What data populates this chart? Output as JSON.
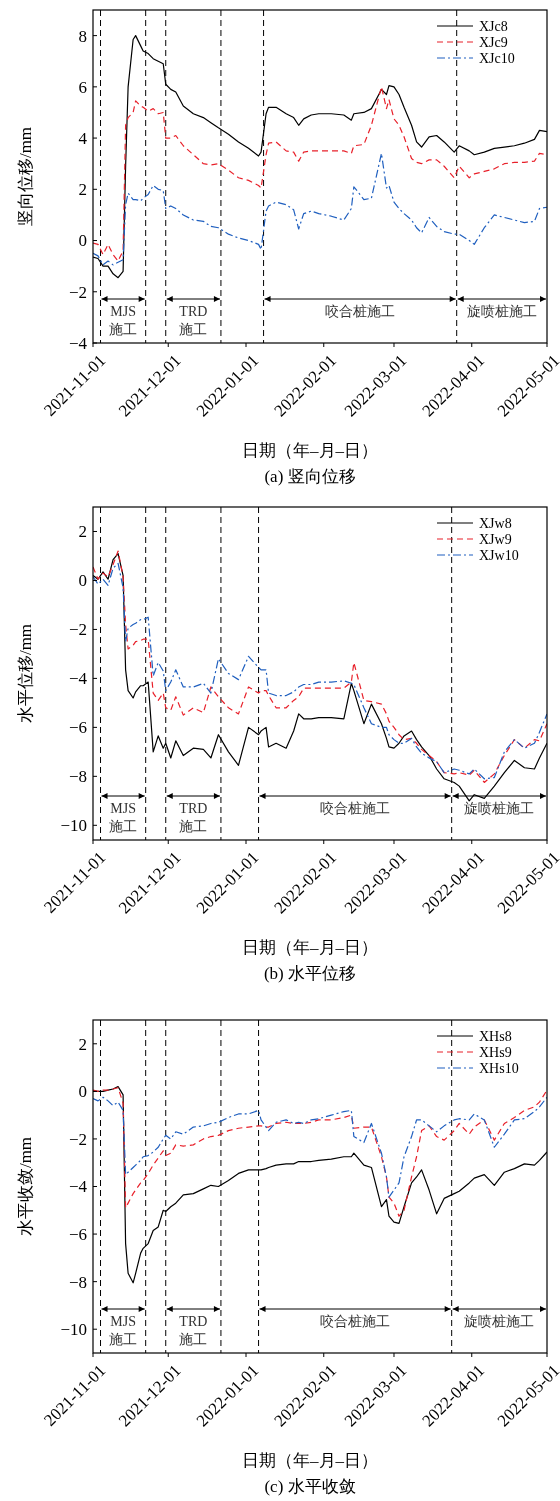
{
  "chart_data": [
    {
      "type": "line",
      "title": "(a) 竖向位移",
      "xlabel": "日期（年–月–日）",
      "ylabel": "竖向位移/mm",
      "xlim": [
        "2021-11-01",
        "2022-05-01"
      ],
      "xticks": [
        "2021-11-01",
        "2021-12-01",
        "2022-01-01",
        "2022-02-01",
        "2022-03-01",
        "2022-04-01",
        "2022-05-01"
      ],
      "ylim": [
        -4,
        9
      ],
      "yticks": [
        -4,
        -2,
        0,
        2,
        4,
        6,
        8
      ],
      "grid": false,
      "legend": "top right",
      "x": [
        "2021-11-01",
        "2021-11-03",
        "2021-11-05",
        "2021-11-07",
        "2021-11-09",
        "2021-11-11",
        "2021-11-13",
        "2021-11-14",
        "2021-11-15",
        "2021-11-17",
        "2021-11-18",
        "2021-11-20",
        "2021-11-21",
        "2021-11-23",
        "2021-11-25",
        "2021-11-27",
        "2021-11-29",
        "2021-11-30",
        "2021-12-02",
        "2021-12-04",
        "2021-12-07",
        "2021-12-11",
        "2021-12-15",
        "2021-12-18",
        "2021-12-21",
        "2021-12-25",
        "2021-12-29",
        "2022-01-02",
        "2022-01-06",
        "2022-01-07",
        "2022-01-09",
        "2022-01-10",
        "2022-01-13",
        "2022-01-17",
        "2022-01-20",
        "2022-01-22",
        "2022-01-24",
        "2022-01-27",
        "2022-01-30",
        "2022-02-04",
        "2022-02-09",
        "2022-02-12",
        "2022-02-13",
        "2022-02-17",
        "2022-02-20",
        "2022-02-24",
        "2022-02-26",
        "2022-02-27",
        "2022-03-01",
        "2022-03-03",
        "2022-03-05",
        "2022-03-08",
        "2022-03-10",
        "2022-03-12",
        "2022-03-15",
        "2022-03-18",
        "2022-03-21",
        "2022-03-25",
        "2022-03-27",
        "2022-03-31",
        "2022-04-02",
        "2022-04-06",
        "2022-04-10",
        "2022-04-14",
        "2022-04-18",
        "2022-04-22",
        "2022-04-26",
        "2022-04-28",
        "2022-05-01"
      ],
      "series": [
        {
          "name": "XJc8",
          "color": "#000000",
          "line_style": "solid",
          "values": [
            -0.65,
            -0.7,
            -1.0,
            -1.0,
            -1.3,
            -1.45,
            -1.2,
            2.9,
            6.0,
            7.85,
            8.0,
            7.6,
            7.4,
            7.3,
            7.1,
            7.0,
            6.9,
            6.1,
            5.9,
            5.8,
            5.25,
            4.95,
            4.8,
            4.6,
            4.4,
            4.15,
            3.85,
            3.6,
            3.3,
            3.45,
            4.95,
            5.2,
            5.2,
            4.95,
            4.8,
            4.5,
            4.75,
            4.9,
            4.95,
            4.95,
            4.9,
            4.7,
            4.95,
            5.0,
            5.15,
            5.9,
            5.7,
            6.05,
            6.0,
            5.7,
            5.2,
            4.5,
            3.85,
            3.65,
            4.05,
            4.1,
            3.85,
            3.45,
            3.7,
            3.5,
            3.35,
            3.45,
            3.6,
            3.65,
            3.7,
            3.8,
            3.95,
            4.3,
            4.25
          ]
        },
        {
          "name": "XJc9",
          "color": "#e8202a",
          "line_style": "dashed",
          "values": [
            -0.1,
            -0.15,
            -0.55,
            -0.15,
            -0.55,
            -0.8,
            -0.4,
            4.5,
            4.8,
            5.0,
            5.45,
            5.25,
            5.2,
            5.05,
            5.15,
            4.95,
            5.0,
            4.0,
            4.0,
            4.1,
            3.7,
            3.35,
            3.0,
            2.95,
            3.0,
            2.75,
            2.45,
            2.35,
            2.15,
            2.05,
            3.35,
            3.8,
            3.85,
            3.5,
            3.45,
            3.1,
            3.45,
            3.5,
            3.5,
            3.5,
            3.5,
            3.4,
            3.7,
            3.75,
            4.5,
            6.0,
            5.15,
            5.5,
            4.75,
            4.5,
            4.05,
            3.2,
            3.05,
            3.0,
            3.15,
            3.15,
            2.9,
            2.45,
            2.9,
            2.45,
            2.6,
            2.7,
            2.8,
            3.0,
            3.05,
            3.05,
            3.1,
            3.4,
            3.35
          ]
        },
        {
          "name": "XJc10",
          "color": "#1f5fbf",
          "line_style": "dashdot",
          "values": [
            -0.5,
            -0.6,
            -0.95,
            -0.8,
            -0.95,
            -0.85,
            -0.75,
            1.4,
            1.85,
            1.6,
            1.6,
            1.55,
            1.65,
            1.8,
            2.15,
            2.0,
            1.95,
            1.25,
            1.35,
            1.25,
            1.0,
            0.8,
            0.75,
            0.55,
            0.5,
            0.25,
            0.1,
            0.0,
            -0.15,
            -0.35,
            1.15,
            1.35,
            1.5,
            1.4,
            1.2,
            0.45,
            1.05,
            1.15,
            1.05,
            0.95,
            0.8,
            1.25,
            2.1,
            1.6,
            1.65,
            3.4,
            2.05,
            2.15,
            1.5,
            1.25,
            1.05,
            0.8,
            0.5,
            0.3,
            0.9,
            0.55,
            0.35,
            0.25,
            0.25,
            0.0,
            -0.15,
            0.5,
            1.0,
            0.9,
            0.8,
            0.7,
            0.75,
            1.25,
            1.3
          ]
        }
      ],
      "ref_lines": [
        {
          "axis": "x",
          "value": "2021-11-04",
          "line_style": "dashed"
        },
        {
          "axis": "x",
          "value": "2021-11-22",
          "line_style": "dashed"
        },
        {
          "axis": "x",
          "value": "2021-11-30",
          "line_style": "dashed"
        },
        {
          "axis": "x",
          "value": "2021-12-22",
          "line_style": "dashed"
        },
        {
          "axis": "x",
          "value": "2022-01-08",
          "line_style": "dashed"
        },
        {
          "axis": "x",
          "value": "2022-03-26",
          "line_style": "dashed"
        }
      ],
      "annotations": [
        "MJS\n施工",
        "TRD\n施工",
        "咬合桩施工",
        "旋喷桩施工"
      ]
    },
    {
      "type": "line",
      "title": "(b) 水平位移",
      "xlabel": "日期（年–月–日）",
      "ylabel": "水平位移/mm",
      "xlim": [
        "2021-11-01",
        "2022-05-01"
      ],
      "xticks": [
        "2021-11-01",
        "2021-12-01",
        "2022-01-01",
        "2022-02-01",
        "2022-03-01",
        "2022-04-01",
        "2022-05-01"
      ],
      "ylim": [
        -10.6,
        3
      ],
      "yticks": [
        -10,
        -8,
        -6,
        -4,
        -2,
        0,
        2
      ],
      "grid": false,
      "legend": "top right",
      "x": [
        "2021-11-01",
        "2021-11-03",
        "2021-11-05",
        "2021-11-07",
        "2021-11-09",
        "2021-11-11",
        "2021-11-13",
        "2021-11-14",
        "2021-11-15",
        "2021-11-17",
        "2021-11-18",
        "2021-11-20",
        "2021-11-21",
        "2021-11-23",
        "2021-11-25",
        "2021-11-27",
        "2021-11-29",
        "2021-11-30",
        "2021-12-02",
        "2021-12-04",
        "2021-12-07",
        "2021-12-11",
        "2021-12-15",
        "2021-12-18",
        "2021-12-21",
        "2021-12-25",
        "2021-12-29",
        "2022-01-02",
        "2022-01-06",
        "2022-01-07",
        "2022-01-09",
        "2022-01-10",
        "2022-01-13",
        "2022-01-17",
        "2022-01-20",
        "2022-01-22",
        "2022-01-24",
        "2022-01-27",
        "2022-01-30",
        "2022-02-04",
        "2022-02-09",
        "2022-02-12",
        "2022-02-13",
        "2022-02-17",
        "2022-02-20",
        "2022-02-24",
        "2022-02-26",
        "2022-02-27",
        "2022-03-01",
        "2022-03-03",
        "2022-03-05",
        "2022-03-08",
        "2022-03-10",
        "2022-03-12",
        "2022-03-15",
        "2022-03-18",
        "2022-03-21",
        "2022-03-25",
        "2022-03-27",
        "2022-03-31",
        "2022-04-02",
        "2022-04-06",
        "2022-04-10",
        "2022-04-14",
        "2022-04-18",
        "2022-04-22",
        "2022-04-26",
        "2022-04-28",
        "2022-05-01"
      ],
      "series": [
        {
          "name": "XJw8",
          "color": "#000000",
          "line_style": "solid",
          "values": [
            0.2,
            0.05,
            0.35,
            0.05,
            0.85,
            1.1,
            0.2,
            -3.65,
            -4.5,
            -4.8,
            -4.55,
            -4.3,
            -4.3,
            -4.15,
            -7.0,
            -6.35,
            -6.85,
            -6.65,
            -7.25,
            -6.55,
            -7.15,
            -6.85,
            -6.9,
            -7.25,
            -6.3,
            -7.0,
            -7.55,
            -6.0,
            -6.3,
            -6.15,
            -6.0,
            -6.8,
            -6.65,
            -6.85,
            -6.15,
            -5.45,
            -5.65,
            -5.65,
            -5.6,
            -5.6,
            -5.65,
            -4.2,
            -4.5,
            -5.85,
            -5.05,
            -5.85,
            -6.45,
            -6.8,
            -6.85,
            -6.65,
            -6.35,
            -6.15,
            -6.5,
            -6.8,
            -7.15,
            -7.7,
            -8.1,
            -8.25,
            -8.4,
            -9.0,
            -8.75,
            -8.9,
            -8.4,
            -7.85,
            -7.35,
            -7.65,
            -7.7,
            -7.25,
            -6.65
          ]
        },
        {
          "name": "XJw9",
          "color": "#e8202a",
          "line_style": "dashed",
          "values": [
            0.55,
            0.05,
            0.3,
            0.15,
            0.65,
            1.2,
            0.15,
            -1.8,
            -2.8,
            -2.65,
            -2.5,
            -2.45,
            -2.4,
            -2.4,
            -4.6,
            -4.9,
            -4.6,
            -5.2,
            -5.3,
            -4.75,
            -5.5,
            -5.2,
            -5.4,
            -4.35,
            -4.75,
            -5.2,
            -5.45,
            -4.35,
            -4.6,
            -4.5,
            -4.5,
            -4.7,
            -5.2,
            -5.2,
            -4.9,
            -4.75,
            -4.4,
            -4.4,
            -4.4,
            -4.4,
            -4.4,
            -4.15,
            -3.35,
            -4.9,
            -4.95,
            -5.05,
            -5.45,
            -5.75,
            -6.0,
            -6.3,
            -6.5,
            -6.45,
            -6.65,
            -6.9,
            -7.15,
            -7.4,
            -7.85,
            -7.9,
            -7.85,
            -7.95,
            -7.75,
            -8.25,
            -7.9,
            -7.15,
            -6.5,
            -6.85,
            -6.5,
            -6.55,
            -5.85
          ]
        },
        {
          "name": "XJw10",
          "color": "#1f5fbf",
          "line_style": "dashdot",
          "values": [
            0.15,
            -0.15,
            0.05,
            -0.2,
            0.5,
            0.7,
            -0.3,
            -2.5,
            -1.95,
            -1.8,
            -1.75,
            -1.6,
            -1.6,
            -1.5,
            -3.9,
            -3.35,
            -3.7,
            -4.5,
            -4.15,
            -3.65,
            -4.35,
            -4.35,
            -4.2,
            -4.6,
            -3.2,
            -3.8,
            -4.05,
            -3.1,
            -3.55,
            -3.65,
            -3.65,
            -4.6,
            -4.7,
            -4.7,
            -4.55,
            -4.35,
            -4.25,
            -4.25,
            -4.15,
            -4.15,
            -4.1,
            -4.2,
            -4.25,
            -5.2,
            -5.85,
            -6.0,
            -6.0,
            -6.3,
            -6.5,
            -6.65,
            -6.65,
            -6.45,
            -6.8,
            -7.05,
            -7.25,
            -7.4,
            -7.85,
            -7.7,
            -7.75,
            -7.9,
            -7.7,
            -8.1,
            -8.05,
            -7.0,
            -6.5,
            -6.85,
            -6.65,
            -6.2,
            -5.45
          ]
        }
      ],
      "ref_lines": [
        {
          "axis": "x",
          "value": "2021-11-04",
          "line_style": "dashed"
        },
        {
          "axis": "x",
          "value": "2021-11-22",
          "line_style": "dashed"
        },
        {
          "axis": "x",
          "value": "2021-11-30",
          "line_style": "dashed"
        },
        {
          "axis": "x",
          "value": "2021-12-22",
          "line_style": "dashed"
        },
        {
          "axis": "x",
          "value": "2022-01-06",
          "line_style": "dashed"
        },
        {
          "axis": "x",
          "value": "2022-03-24",
          "line_style": "dashed"
        }
      ],
      "annotations": [
        "MJS\n施工",
        "TRD\n施工",
        "咬合桩施工",
        "旋喷桩施工"
      ]
    },
    {
      "type": "line",
      "title": "(c) 水平收敛",
      "xlabel": "日期（年–月–日）",
      "ylabel": "水平收敛/mm",
      "xlim": [
        "2021-11-01",
        "2022-05-01"
      ],
      "xticks": [
        "2021-11-01",
        "2021-12-01",
        "2022-01-01",
        "2022-02-01",
        "2022-03-01",
        "2022-04-01",
        "2022-05-01"
      ],
      "ylim": [
        -11,
        3
      ],
      "yticks": [
        -10,
        -8,
        -6,
        -4,
        -2,
        0,
        2
      ],
      "grid": false,
      "legend": "top right",
      "x": [
        "2021-11-01",
        "2021-11-03",
        "2021-11-05",
        "2021-11-07",
        "2021-11-09",
        "2021-11-11",
        "2021-11-13",
        "2021-11-14",
        "2021-11-15",
        "2021-11-17",
        "2021-11-18",
        "2021-11-20",
        "2021-11-21",
        "2021-11-23",
        "2021-11-25",
        "2021-11-27",
        "2021-11-29",
        "2021-11-30",
        "2021-12-02",
        "2021-12-04",
        "2021-12-07",
        "2021-12-11",
        "2021-12-15",
        "2021-12-18",
        "2021-12-21",
        "2021-12-25",
        "2021-12-29",
        "2022-01-02",
        "2022-01-06",
        "2022-01-07",
        "2022-01-09",
        "2022-01-10",
        "2022-01-13",
        "2022-01-17",
        "2022-01-20",
        "2022-01-22",
        "2022-01-24",
        "2022-01-27",
        "2022-01-30",
        "2022-02-04",
        "2022-02-09",
        "2022-02-12",
        "2022-02-13",
        "2022-02-17",
        "2022-02-20",
        "2022-02-24",
        "2022-02-26",
        "2022-02-27",
        "2022-03-01",
        "2022-03-03",
        "2022-03-05",
        "2022-03-08",
        "2022-03-10",
        "2022-03-12",
        "2022-03-15",
        "2022-03-18",
        "2022-03-21",
        "2022-03-25",
        "2022-03-27",
        "2022-03-31",
        "2022-04-02",
        "2022-04-06",
        "2022-04-10",
        "2022-04-14",
        "2022-04-18",
        "2022-04-22",
        "2022-04-26",
        "2022-04-28",
        "2022-05-01"
      ],
      "series": [
        {
          "name": "XHs8",
          "color": "#000000",
          "line_style": "solid",
          "values": [
            0.0,
            0.0,
            0.0,
            0.05,
            0.1,
            0.2,
            -0.15,
            -6.4,
            -7.65,
            -8.05,
            -7.65,
            -6.8,
            -6.6,
            -6.4,
            -5.85,
            -5.7,
            -5.0,
            -5.05,
            -4.85,
            -4.7,
            -4.35,
            -4.3,
            -4.1,
            -3.95,
            -4.0,
            -3.75,
            -3.45,
            -3.3,
            -3.3,
            -3.3,
            -3.25,
            -3.2,
            -3.1,
            -3.05,
            -3.05,
            -2.95,
            -2.95,
            -2.95,
            -2.9,
            -2.85,
            -2.75,
            -2.75,
            -2.6,
            -3.1,
            -3.2,
            -4.85,
            -4.55,
            -5.25,
            -5.5,
            -5.55,
            -4.85,
            -3.85,
            -3.6,
            -3.3,
            -4.15,
            -5.15,
            -4.5,
            -4.3,
            -4.2,
            -3.85,
            -3.65,
            -3.5,
            -3.95,
            -3.4,
            -3.25,
            -3.05,
            -3.1,
            -2.9,
            -2.55
          ]
        },
        {
          "name": "XHs9",
          "color": "#e8202a",
          "line_style": "dashed",
          "values": [
            0.05,
            0.0,
            0.05,
            0.05,
            0.1,
            0.15,
            -0.5,
            -4.9,
            -4.7,
            -4.3,
            -4.15,
            -3.85,
            -3.75,
            -3.45,
            -3.1,
            -2.8,
            -2.5,
            -2.7,
            -2.6,
            -2.25,
            -2.3,
            -2.25,
            -2.0,
            -1.9,
            -1.85,
            -1.65,
            -1.55,
            -1.5,
            -1.45,
            -1.45,
            -1.5,
            -1.5,
            -1.35,
            -1.3,
            -1.35,
            -1.35,
            -1.35,
            -1.3,
            -1.2,
            -1.2,
            -1.1,
            -1.0,
            -1.55,
            -1.5,
            -1.5,
            -2.75,
            -3.6,
            -4.45,
            -4.7,
            -5.25,
            -5.0,
            -3.6,
            -2.75,
            -1.65,
            -1.45,
            -1.9,
            -2.05,
            -1.65,
            -1.35,
            -1.8,
            -1.5,
            -1.2,
            -2.05,
            -1.35,
            -1.1,
            -0.8,
            -0.65,
            -0.45,
            0.05
          ]
        },
        {
          "name": "XHs10",
          "color": "#1f5fbf",
          "line_style": "dashdot",
          "values": [
            -0.3,
            -0.4,
            -0.25,
            -0.4,
            -0.6,
            -0.45,
            -0.8,
            -3.5,
            -3.4,
            -3.2,
            -3.1,
            -2.9,
            -2.75,
            -2.7,
            -2.55,
            -2.35,
            -2.0,
            -1.85,
            -2.0,
            -1.7,
            -1.8,
            -1.5,
            -1.45,
            -1.35,
            -1.3,
            -1.1,
            -0.95,
            -0.95,
            -0.8,
            -1.2,
            -1.5,
            -1.65,
            -1.3,
            -1.2,
            -1.35,
            -1.3,
            -1.35,
            -1.2,
            -1.15,
            -1.0,
            -0.85,
            -0.8,
            -1.9,
            -2.15,
            -1.35,
            -2.6,
            -3.6,
            -4.45,
            -4.15,
            -3.85,
            -2.75,
            -1.9,
            -1.2,
            -1.2,
            -1.45,
            -1.7,
            -1.45,
            -1.2,
            -1.15,
            -1.2,
            -0.95,
            -1.2,
            -2.35,
            -1.8,
            -1.2,
            -1.15,
            -0.85,
            -0.65,
            -0.25
          ]
        }
      ],
      "ref_lines": [
        {
          "axis": "x",
          "value": "2021-11-04",
          "line_style": "dashed"
        },
        {
          "axis": "x",
          "value": "2021-11-22",
          "line_style": "dashed"
        },
        {
          "axis": "x",
          "value": "2021-11-30",
          "line_style": "dashed"
        },
        {
          "axis": "x",
          "value": "2021-12-22",
          "line_style": "dashed"
        },
        {
          "axis": "x",
          "value": "2022-01-06",
          "line_style": "dashed"
        },
        {
          "axis": "x",
          "value": "2022-03-24",
          "line_style": "dashed"
        }
      ],
      "annotations": [
        "MJS\n施工",
        "TRD\n施工",
        "咬合桩施工",
        "旋喷桩施工"
      ]
    }
  ]
}
